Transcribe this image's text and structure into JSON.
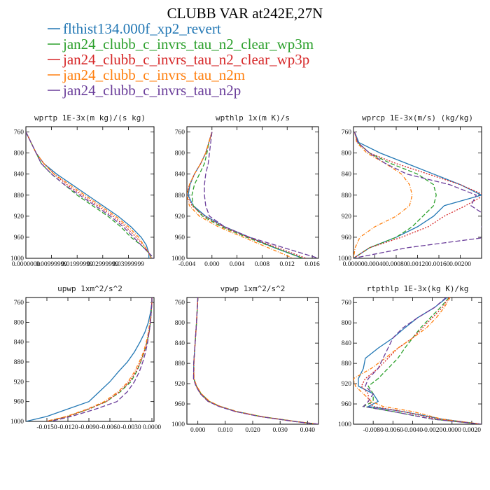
{
  "title": "CLUBB VAR at242E,27N",
  "legend": [
    {
      "label": "flthist134.000f_xp2_revert",
      "color": "#2277b4",
      "dash": ""
    },
    {
      "label": "jan24_clubb_c_invrs_tau_n2_clear_wp3m",
      "color": "#2ca02c",
      "dash": "6,3"
    },
    {
      "label": "jan24_clubb_c_invrs_tau_n2_clear_wp3p",
      "color": "#d62728",
      "dash": "2,2"
    },
    {
      "label": "jan24_clubb_c_invrs_tau_n2m",
      "color": "#ff7f0e",
      "dash": "5,2,1,2"
    },
    {
      "label": "jan24_clubb_c_invrs_tau_n2p",
      "color": "#6a3d9a",
      "dash": "7,3"
    }
  ],
  "chart_data": [
    {
      "type": "line",
      "title": "wprtp  1E-3x(m kg)/(s kg)",
      "xlim": [
        0.0,
        0.05
      ],
      "ylim": [
        1000,
        750
      ],
      "yticks": [
        760,
        800,
        840,
        880,
        920,
        960,
        1000
      ],
      "xtick_labels": [
        "0.0000000",
        "0.00999999",
        "0.01999999",
        "0.02999999",
        "0.03999999"
      ],
      "xtick_values": [
        0.0,
        0.01,
        0.02,
        0.03,
        0.04
      ],
      "y": [
        760,
        780,
        800,
        820,
        840,
        860,
        880,
        900,
        920,
        940,
        960,
        975,
        990,
        1000
      ],
      "series": [
        {
          "values": [
            0.0,
            0.002,
            0.004,
            0.007,
            0.012,
            0.018,
            0.024,
            0.03,
            0.036,
            0.041,
            0.045,
            0.047,
            0.048,
            0.048
          ]
        },
        {
          "values": [
            0.0,
            0.002,
            0.004,
            0.006,
            0.01,
            0.015,
            0.02,
            0.026,
            0.032,
            0.037,
            0.041,
            0.045,
            0.048,
            0.049
          ]
        },
        {
          "values": [
            0.0,
            0.002,
            0.004,
            0.007,
            0.011,
            0.016,
            0.022,
            0.028,
            0.034,
            0.039,
            0.043,
            0.046,
            0.048,
            0.049
          ]
        },
        {
          "values": [
            0.0,
            0.002,
            0.004,
            0.007,
            0.011,
            0.017,
            0.023,
            0.029,
            0.035,
            0.04,
            0.044,
            0.046,
            0.048,
            0.049
          ]
        },
        {
          "values": [
            0.0,
            0.002,
            0.004,
            0.006,
            0.01,
            0.015,
            0.021,
            0.027,
            0.033,
            0.038,
            0.042,
            0.045,
            0.048,
            0.05
          ]
        }
      ]
    },
    {
      "type": "line",
      "title": "wpthlp  1x(m K)/s",
      "xlim": [
        -0.004,
        0.017
      ],
      "ylim": [
        1000,
        750
      ],
      "yticks": [
        760,
        800,
        840,
        880,
        920,
        960,
        1000
      ],
      "xtick_labels": [
        "-0.004",
        "0.000",
        "0.004",
        "0.008",
        "0.012",
        "0.016"
      ],
      "xtick_values": [
        -0.004,
        0.0,
        0.004,
        0.008,
        0.012,
        0.016
      ],
      "y": [
        760,
        780,
        800,
        820,
        840,
        860,
        880,
        900,
        920,
        940,
        960,
        980,
        1000
      ],
      "series": [
        {
          "values": [
            0.0,
            -0.0005,
            -0.001,
            -0.0018,
            -0.0028,
            -0.0035,
            -0.0038,
            -0.003,
            -0.001,
            0.002,
            0.006,
            0.01,
            0.0145
          ]
        },
        {
          "values": [
            0.0,
            -0.0005,
            -0.0008,
            -0.0012,
            -0.002,
            -0.0028,
            -0.0032,
            -0.003,
            -0.0015,
            0.0015,
            0.0055,
            0.01,
            0.0145
          ]
        },
        {
          "values": [
            0.0,
            -0.0005,
            -0.001,
            -0.0018,
            -0.0028,
            -0.0036,
            -0.004,
            -0.0032,
            -0.0012,
            0.0018,
            0.0058,
            0.0105,
            0.015
          ]
        },
        {
          "values": [
            0.0,
            -0.0005,
            -0.001,
            -0.0018,
            -0.0028,
            -0.0036,
            -0.004,
            -0.0036,
            -0.002,
            0.001,
            0.005,
            0.009,
            0.013
          ]
        },
        {
          "values": [
            0.0,
            -0.0002,
            -0.0004,
            -0.0006,
            -0.001,
            -0.0012,
            -0.0012,
            -0.001,
            -0.0004,
            0.002,
            0.006,
            0.0115,
            0.017
          ]
        }
      ]
    },
    {
      "type": "line",
      "title": "wprcp  1E-3x(m/s) (kg/kg)",
      "xlim": [
        0.0,
        0.0024
      ],
      "ylim": [
        1000,
        750
      ],
      "yticks": [
        760,
        800,
        840,
        880,
        920,
        960,
        1000
      ],
      "xtick_labels": [
        "0.00000",
        "0.00040",
        "0.00080",
        "0.00120",
        "0.00160",
        "0.00200"
      ],
      "xtick_values": [
        0.0,
        0.0004,
        0.0008,
        0.0012,
        0.0016,
        0.002
      ],
      "y": [
        760,
        780,
        800,
        820,
        840,
        860,
        880,
        900,
        920,
        940,
        960,
        980,
        1000
      ],
      "series": [
        {
          "values": [
            2e-05,
            0.0001,
            0.0005,
            0.001,
            0.0015,
            0.002,
            0.0024,
            0.0017,
            0.0015,
            0.0012,
            0.0008,
            0.0003,
            0.0
          ]
        },
        {
          "values": [
            2e-05,
            8e-05,
            0.0003,
            0.0007,
            0.0012,
            0.0015,
            0.00155,
            0.0015,
            0.0013,
            0.0011,
            0.0008,
            0.0003,
            0.0
          ]
        },
        {
          "values": [
            2e-05,
            8e-05,
            0.0003,
            0.0008,
            0.0014,
            0.002,
            0.00245,
            0.0021,
            0.0017,
            0.0014,
            0.0009,
            0.0003,
            0.0
          ]
        },
        {
          "values": [
            2e-05,
            6e-05,
            0.00025,
            0.0006,
            0.0009,
            0.00105,
            0.0011,
            0.00105,
            0.0008,
            0.0004,
            0.00012,
            3e-05,
            0.0
          ]
        },
        {
          "values": [
            2e-05,
            8e-05,
            0.0003,
            0.0006,
            0.001,
            0.0018,
            0.0023,
            0.0022,
            0.0025,
            0.0024,
            0.0025,
            0.001,
            0.0
          ]
        }
      ]
    },
    {
      "type": "line",
      "title": "upwp  1xm^2/s^2",
      "xlim": [
        -0.018,
        0.0003
      ],
      "ylim": [
        1000,
        750
      ],
      "yticks": [
        760,
        800,
        840,
        880,
        920,
        960,
        1000
      ],
      "xtick_labels": [
        "-0.0150",
        "-0.0120",
        "-0.0090",
        "-0.0060",
        "-0.0030",
        "0.0000"
      ],
      "xtick_values": [
        -0.015,
        -0.012,
        -0.009,
        -0.006,
        -0.003,
        0.0
      ],
      "y": [
        750,
        760,
        780,
        800,
        820,
        840,
        860,
        880,
        900,
        920,
        940,
        960,
        975,
        990,
        1000
      ],
      "series": [
        {
          "values": [
            0.0,
            0.0,
            -0.0002,
            -0.0005,
            -0.001,
            -0.0017,
            -0.0025,
            -0.0035,
            -0.0048,
            -0.006,
            -0.0075,
            -0.009,
            -0.012,
            -0.015,
            -0.018
          ]
        },
        {
          "values": [
            0.0,
            0.0,
            -0.0001,
            -0.0002,
            -0.0004,
            -0.0007,
            -0.0011,
            -0.0016,
            -0.0022,
            -0.003,
            -0.0045,
            -0.0065,
            -0.009,
            -0.012,
            -0.015
          ]
        },
        {
          "values": [
            0.0,
            0.0,
            -0.0001,
            -0.0002,
            -0.0004,
            -0.0007,
            -0.0011,
            -0.0016,
            -0.0023,
            -0.0032,
            -0.0046,
            -0.0065,
            -0.009,
            -0.012,
            -0.015
          ]
        },
        {
          "values": [
            0.0,
            0.0,
            -0.0001,
            -0.0003,
            -0.0005,
            -0.0008,
            -0.0012,
            -0.0018,
            -0.0025,
            -0.0034,
            -0.0048,
            -0.0068,
            -0.0092,
            -0.0122,
            -0.0152
          ]
        },
        {
          "values": [
            0.0,
            0.0,
            -0.0001,
            -0.0002,
            -0.0004,
            -0.0006,
            -0.0009,
            -0.0013,
            -0.0018,
            -0.0025,
            -0.0035,
            -0.005,
            -0.008,
            -0.0115,
            -0.0145
          ]
        }
      ]
    },
    {
      "type": "line",
      "title": "vpwp  1xm^2/s^2",
      "xlim": [
        -0.004,
        0.044
      ],
      "ylim": [
        1000,
        750
      ],
      "yticks": [
        760,
        800,
        840,
        880,
        920,
        960,
        1000
      ],
      "xtick_labels": [
        "0.000",
        "0.010",
        "0.020",
        "0.030",
        "0.040"
      ],
      "xtick_values": [
        0.0,
        0.01,
        0.02,
        0.03,
        0.04
      ],
      "y": [
        750,
        800,
        840,
        880,
        910,
        925,
        940,
        955,
        965,
        975,
        985,
        995,
        1000
      ],
      "series": [
        {
          "values": [
            0.0,
            -0.0005,
            -0.001,
            -0.0015,
            -0.0015,
            -0.0005,
            0.001,
            0.004,
            0.008,
            0.014,
            0.023,
            0.036,
            0.044
          ]
        },
        {
          "values": [
            0.0,
            -0.0005,
            -0.001,
            -0.0015,
            -0.0015,
            -0.0005,
            0.0012,
            0.0042,
            0.0082,
            0.0142,
            0.0232,
            0.0362,
            0.044
          ]
        },
        {
          "values": [
            0.0,
            -0.0005,
            -0.001,
            -0.0015,
            -0.0015,
            -0.0006,
            0.001,
            0.0038,
            0.0078,
            0.0138,
            0.0228,
            0.0358,
            0.044
          ]
        },
        {
          "values": [
            0.0,
            -0.0005,
            -0.001,
            -0.0014,
            -0.0014,
            -0.0004,
            0.0013,
            0.0043,
            0.0083,
            0.0143,
            0.0233,
            0.0363,
            0.044
          ]
        },
        {
          "values": [
            0.0,
            -0.0005,
            -0.001,
            -0.0015,
            -0.0016,
            -0.0007,
            0.0009,
            0.0037,
            0.0077,
            0.0137,
            0.0227,
            0.0357,
            0.044
          ]
        }
      ]
    },
    {
      "type": "line",
      "title": "rtpthlp  1E-3x(kg K)/kg",
      "xlim": [
        -0.01,
        0.003
      ],
      "ylim": [
        1000,
        750
      ],
      "yticks": [
        760,
        800,
        840,
        880,
        920,
        960,
        1000
      ],
      "xtick_labels": [
        "-0.0080",
        "-0.0060",
        "-0.0040",
        "-0.0020",
        "0.0000",
        "0.0020"
      ],
      "xtick_values": [
        -0.008,
        -0.006,
        -0.004,
        -0.002,
        0.0,
        0.002
      ],
      "y": [
        750,
        770,
        790,
        810,
        830,
        850,
        870,
        890,
        910,
        925,
        940,
        955,
        965,
        975,
        990,
        1000
      ],
      "series": [
        {
          "values": [
            -0.0005,
            -0.0018,
            -0.0035,
            -0.0048,
            -0.006,
            -0.0075,
            -0.0088,
            -0.009,
            -0.0095,
            -0.0095,
            -0.008,
            -0.0075,
            -0.0085,
            -0.005,
            -0.001,
            0.003
          ]
        },
        {
          "values": [
            -0.0003,
            -0.0012,
            -0.0022,
            -0.0032,
            -0.004,
            -0.0048,
            -0.0055,
            -0.0065,
            -0.0075,
            -0.0085,
            -0.008,
            -0.008,
            -0.009,
            -0.006,
            -0.002,
            0.003
          ]
        },
        {
          "values": [
            -0.0003,
            -0.001,
            -0.002,
            -0.003,
            -0.004,
            -0.0055,
            -0.0065,
            -0.0075,
            -0.0088,
            -0.0092,
            -0.0085,
            -0.0085,
            -0.008,
            -0.005,
            -0.0015,
            0.003
          ]
        },
        {
          "values": [
            -0.0002,
            -0.0008,
            -0.0016,
            -0.0026,
            -0.004,
            -0.0055,
            -0.0068,
            -0.0082,
            -0.01,
            -0.0098,
            -0.009,
            -0.0082,
            -0.007,
            -0.004,
            -0.001,
            0.003
          ]
        },
        {
          "values": [
            -0.0006,
            -0.0018,
            -0.0035,
            -0.005,
            -0.006,
            -0.0065,
            -0.007,
            -0.0075,
            -0.0085,
            -0.0088,
            -0.008,
            -0.0085,
            -0.009,
            -0.006,
            -0.002,
            0.003
          ]
        }
      ]
    }
  ]
}
